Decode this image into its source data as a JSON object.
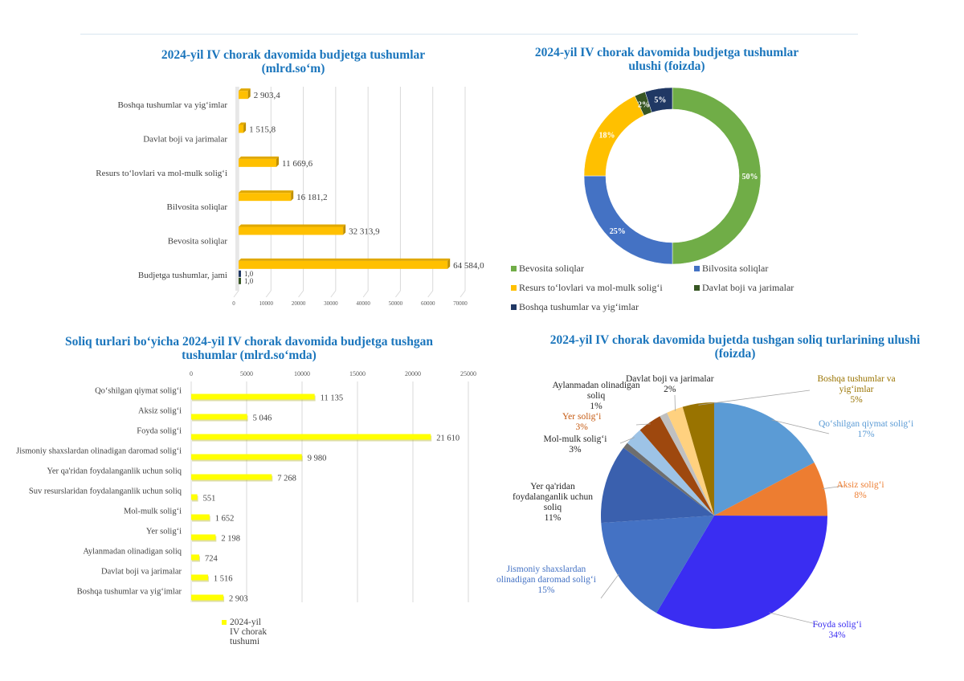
{
  "chart_data": [
    {
      "type": "bar",
      "orientation": "horizontal",
      "title": [
        "2024-yil IV chorak davomida budjetga tushumlar",
        "(mlrd.so‘m)"
      ],
      "categories": [
        "Boshqa tushumlar va yig‘imlar",
        "Davlat boji va jarimalar",
        "Resurs to‘lovlari va mol-mulk solig‘i",
        "Bilvosita soliqlar",
        "Bevosita soliqlar",
        "Budjetga tushumlar, jami"
      ],
      "values": [
        2903.4,
        1515.8,
        11669.6,
        16181.2,
        32313.9,
        64584.0
      ],
      "value_labels": [
        "2 903,4",
        "1 515,8",
        "11 669,6",
        "16 181,2",
        "32 313,9",
        "64 584,0"
      ],
      "extra_series": [
        {
          "category": "Budjetga tushumlar, jami",
          "value": 1.0,
          "label": "1,0",
          "color": "#203864"
        },
        {
          "category": "Budjetga tushumlar, jami",
          "value": 1.0,
          "label": "1,0",
          "color": "#375623"
        }
      ],
      "xlim": [
        0,
        70000
      ],
      "xticks": [
        "0",
        "10000",
        "20000",
        "30000",
        "40000",
        "50000",
        "60000",
        "70000"
      ],
      "bar_color": "#ffc000",
      "grid": true
    },
    {
      "type": "pie",
      "style": "donut",
      "title": [
        "2024-yil IV chorak davomida budjetga tushumlar",
        "ulushi (foizda)"
      ],
      "labels": [
        "Bevosita soliqlar",
        "Bilvosita soliqlar",
        "Resurs to‘lovlari va mol-mulk solig‘i",
        "Davlat boji va jarimalar",
        "Boshqa tushumlar va yig‘imlar"
      ],
      "values": [
        50,
        25,
        18,
        2,
        5
      ],
      "value_labels": [
        "50%",
        "25%",
        "18%",
        "2%",
        "5%"
      ],
      "colors": [
        "#70ad47",
        "#4472c4",
        "#ffc000",
        "#375623",
        "#203864"
      ],
      "legend": "bottom"
    },
    {
      "type": "bar",
      "orientation": "horizontal",
      "title": [
        "Soliq turlari bo‘yicha 2024-yil IV chorak davomida budjetga tushgan",
        "tushumlar (mlrd.so‘mda)"
      ],
      "categories": [
        "Qo‘shilgan qiymat solig‘i",
        "Aksiz solig‘i",
        "Foyda solig‘i",
        "Jismoniy shaxslardan olinadigan daromad solig‘i",
        "Yer qa'ridan foydalanganlik uchun soliq",
        "Suv resurslaridan foydalanganlik uchun soliq",
        "Mol-mulk solig‘i",
        "Yer solig‘i",
        "Aylanmadan olinadigan soliq",
        "Davlat boji va jarimalar",
        "Boshqa tushumlar va yig‘imlar"
      ],
      "values": [
        11135,
        5046,
        21610,
        9980,
        7268,
        551,
        1652,
        2198,
        724,
        1516,
        2903
      ],
      "value_labels": [
        "11 135",
        "5 046",
        "21 610",
        "9 980",
        "7 268",
        "551",
        "1 652",
        "2 198",
        "724",
        "1 516",
        "2 903"
      ],
      "xlim": [
        0,
        25000
      ],
      "xticks": [
        "0",
        "5000",
        "10000",
        "15000",
        "20000",
        "25000"
      ],
      "bar_color": "#ffff00",
      "legend": {
        "label": [
          "2024-yil",
          "IV chorak",
          "tushumi"
        ],
        "position": "bottom"
      },
      "grid": true
    },
    {
      "type": "pie",
      "title": [
        "2024-yil IV chorak davomida bujetda tushgan soliq turlarining ulushi",
        "(foizda)"
      ],
      "slices": [
        {
          "name": [
            "Qo‘shilgan qiymat solig‘i"
          ],
          "pct": 17,
          "label": "17%",
          "value": 11135,
          "color": "#5b9bd5",
          "label_color": "#5b9bd5"
        },
        {
          "name": [
            "Aksiz solig‘i"
          ],
          "pct": 8,
          "label": "8%",
          "value": 5046,
          "color": "#ed7d31",
          "label_color": "#ed7d31"
        },
        {
          "name": [
            "Foyda solig‘i"
          ],
          "pct": 34,
          "label": "34%",
          "value": 21610,
          "color": "#3a2df2",
          "label_color": "#3a2df2"
        },
        {
          "name": [
            "Jismoniy shaxslardan",
            "olinadigan daromad solig‘i"
          ],
          "pct": 15,
          "label": "15%",
          "value": 9980,
          "color": "#4472c4",
          "label_color": "#4472c4"
        },
        {
          "name": [
            "Yer qa'ridan",
            "foydalanganlik uchun",
            "soliq"
          ],
          "pct": 11,
          "label": "11%",
          "value": 7268,
          "color": "#3a60ae",
          "label_color": "#262626"
        },
        {
          "name": [],
          "pct": 1,
          "label": "",
          "value": 551,
          "color": "#6e6e6e",
          "label_color": "#262626"
        },
        {
          "name": [
            "Mol-mulk solig‘i"
          ],
          "pct": 3,
          "label": "3%",
          "value": 1652,
          "color": "#9dc3e6",
          "label_color": "#262626"
        },
        {
          "name": [
            "Yer solig‘i"
          ],
          "pct": 3,
          "label": "3%",
          "value": 2198,
          "color": "#9e480e",
          "label_color": "#c55a11"
        },
        {
          "name": [
            "Aylanmadan olinadigan",
            "soliq"
          ],
          "pct": 1,
          "label": "1%",
          "value": 724,
          "color": "#c0c0c0",
          "label_color": "#262626"
        },
        {
          "name": [
            "Davlat boji va jarimalar"
          ],
          "pct": 2,
          "label": "2%",
          "value": 1516,
          "color": "#ffd17f",
          "label_color": "#262626"
        },
        {
          "name": [
            "Boshqa tushumlar va",
            "yig‘imlar"
          ],
          "pct": 5,
          "label": "5%",
          "value": 2903,
          "color": "#997300",
          "label_color": "#997300"
        }
      ]
    }
  ]
}
